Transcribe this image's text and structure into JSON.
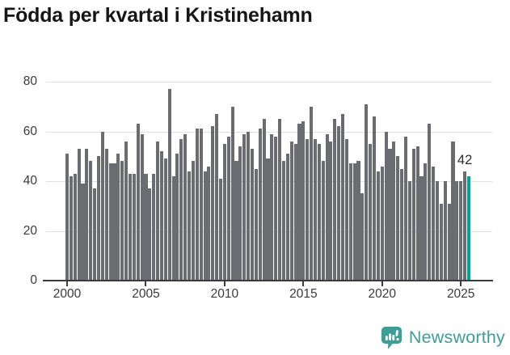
{
  "header": {
    "title": "Födda per kvartal i Kristinehamn"
  },
  "chart_data": {
    "type": "bar",
    "title": "Födda per kvartal i Kristinehamn",
    "xlabel": "",
    "ylabel": "",
    "ylim": [
      0,
      80
    ],
    "yticks": [
      0,
      20,
      40,
      60,
      80
    ],
    "xticks": [
      "2000",
      "2005",
      "2010",
      "2015",
      "2020",
      "2025"
    ],
    "grid": true,
    "legend": false,
    "categories": [
      "2000K1",
      "2000K2",
      "2000K3",
      "2000K4",
      "2001K1",
      "2001K2",
      "2001K3",
      "2001K4",
      "2002K1",
      "2002K2",
      "2002K3",
      "2002K4",
      "2003K1",
      "2003K2",
      "2003K3",
      "2003K4",
      "2004K1",
      "2004K2",
      "2004K3",
      "2004K4",
      "2005K1",
      "2005K2",
      "2005K3",
      "2005K4",
      "2006K1",
      "2006K2",
      "2006K3",
      "2006K4",
      "2007K1",
      "2007K2",
      "2007K3",
      "2007K4",
      "2008K1",
      "2008K2",
      "2008K3",
      "2008K4",
      "2009K1",
      "2009K2",
      "2009K3",
      "2009K4",
      "2010K1",
      "2010K2",
      "2010K3",
      "2010K4",
      "2011K1",
      "2011K2",
      "2011K3",
      "2011K4",
      "2012K1",
      "2012K2",
      "2012K3",
      "2012K4",
      "2013K1",
      "2013K2",
      "2013K3",
      "2013K4",
      "2014K1",
      "2014K2",
      "2014K3",
      "2014K4",
      "2015K1",
      "2015K2",
      "2015K3",
      "2015K4",
      "2016K1",
      "2016K2",
      "2016K3",
      "2016K4",
      "2017K1",
      "2017K2",
      "2017K3",
      "2017K4",
      "2018K1",
      "2018K2",
      "2018K3",
      "2018K4",
      "2019K1",
      "2019K2",
      "2019K3",
      "2019K4",
      "2020K1",
      "2020K2",
      "2020K3",
      "2020K4",
      "2021K1",
      "2021K2",
      "2021K3",
      "2021K4",
      "2022K1",
      "2022K2",
      "2022K3",
      "2022K4",
      "2023K1",
      "2023K2",
      "2023K3",
      "2023K4",
      "2024K1",
      "2024K2",
      "2024K3",
      "2024K4",
      "2025K1",
      "2025K2",
      "2025K3"
    ],
    "values": [
      51,
      42,
      43,
      53,
      39,
      53,
      48,
      37,
      50,
      60,
      53,
      47,
      47,
      51,
      48,
      56,
      43,
      43,
      63,
      59,
      43,
      37,
      43,
      56,
      52,
      49,
      77,
      42,
      51,
      57,
      59,
      44,
      48,
      61,
      61,
      44,
      46,
      62,
      67,
      41,
      55,
      58,
      70,
      48,
      54,
      59,
      60,
      53,
      45,
      61,
      65,
      49,
      59,
      58,
      65,
      48,
      51,
      56,
      55,
      63,
      64,
      57,
      70,
      57,
      55,
      48,
      59,
      56,
      65,
      62,
      67,
      57,
      47,
      47,
      48,
      35,
      71,
      55,
      66,
      44,
      46,
      60,
      53,
      56,
      50,
      45,
      58,
      40,
      53,
      54,
      42,
      47,
      63,
      46,
      40,
      31,
      40,
      31,
      56,
      40,
      40,
      44,
      42
    ],
    "highlight_index": 102,
    "highlight_value_label": "42",
    "colors": {
      "bar": "#6b6b72",
      "highlight": "#00a49b",
      "grid": "#e0e0e0",
      "axis": "#3b3b3b",
      "text": "#3a3a3a"
    }
  },
  "footer": {
    "brand": "Newsworthy",
    "logo_icon": "newsworthy-speech-bubble-bars-icon",
    "logo_color": "#3f9d97"
  }
}
